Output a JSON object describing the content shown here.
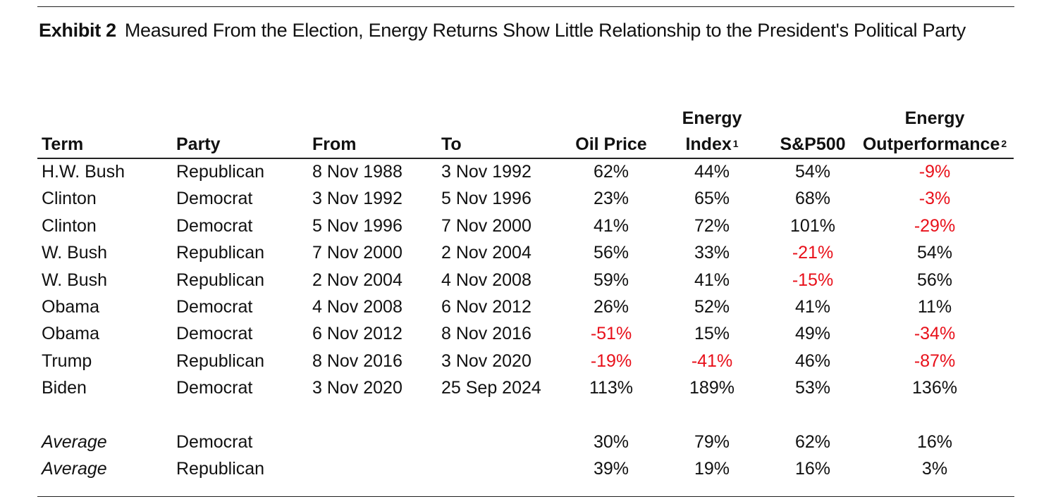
{
  "exhibit": {
    "label": "Exhibit 2",
    "title": "Measured From the Election, Energy Returns Show Little Relationship to the President's Political Party"
  },
  "columns": {
    "term": "Term",
    "party": "Party",
    "from": "From",
    "to": "To",
    "oil": "Oil Price",
    "energy_line1": "Energy",
    "energy_line2": "Index",
    "energy_note": "1",
    "sp": "S&P500",
    "outperf_line1": "Energy",
    "outperf_line2": "Outperformance",
    "outperf_note": "2"
  },
  "rows": [
    {
      "term": "H.W. Bush",
      "party": "Republican",
      "from": "8 Nov 1988",
      "to": "3 Nov 1992",
      "oil": "62%",
      "energy": "44%",
      "sp": "54%",
      "outperf": "-9%"
    },
    {
      "term": "Clinton",
      "party": "Democrat",
      "from": "3 Nov 1992",
      "to": "5 Nov 1996",
      "oil": "23%",
      "energy": "65%",
      "sp": "68%",
      "outperf": "-3%"
    },
    {
      "term": "Clinton",
      "party": "Democrat",
      "from": "5 Nov 1996",
      "to": "7 Nov 2000",
      "oil": "41%",
      "energy": "72%",
      "sp": "101%",
      "outperf": "-29%"
    },
    {
      "term": "W. Bush",
      "party": "Republican",
      "from": "7 Nov 2000",
      "to": "2 Nov 2004",
      "oil": "56%",
      "energy": "33%",
      "sp": "-21%",
      "outperf": "54%"
    },
    {
      "term": "W. Bush",
      "party": "Republican",
      "from": "2 Nov 2004",
      "to": "4 Nov 2008",
      "oil": "59%",
      "energy": "41%",
      "sp": "-15%",
      "outperf": "56%"
    },
    {
      "term": "Obama",
      "party": "Democrat",
      "from": "4 Nov 2008",
      "to": "6 Nov 2012",
      "oil": "26%",
      "energy": "52%",
      "sp": "41%",
      "outperf": "11%"
    },
    {
      "term": "Obama",
      "party": "Democrat",
      "from": "6 Nov 2012",
      "to": "8 Nov 2016",
      "oil": "-51%",
      "energy": "15%",
      "sp": "49%",
      "outperf": "-34%"
    },
    {
      "term": "Trump",
      "party": "Republican",
      "from": "8 Nov 2016",
      "to": "3 Nov 2020",
      "oil": "-19%",
      "energy": "-41%",
      "sp": "46%",
      "outperf": "-87%"
    },
    {
      "term": "Biden",
      "party": "Democrat",
      "from": "3 Nov 2020",
      "to": "25 Sep 2024",
      "oil": "113%",
      "energy": "189%",
      "sp": "53%",
      "outperf": "136%"
    }
  ],
  "averages": [
    {
      "term": "Average",
      "party": "Democrat",
      "oil": "30%",
      "energy": "79%",
      "sp": "62%",
      "outperf": "16%"
    },
    {
      "term": "Average",
      "party": "Republican",
      "oil": "39%",
      "energy": "19%",
      "sp": "16%",
      "outperf": "3%"
    }
  ],
  "colors": {
    "negative": "#e8101a",
    "text": "#111111",
    "rule": "#222222"
  }
}
